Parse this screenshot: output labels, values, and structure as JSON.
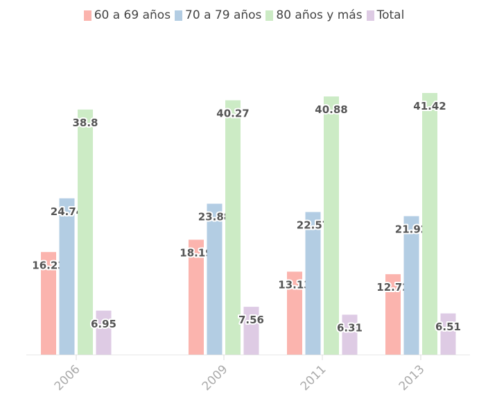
{
  "chart_data": {
    "type": "bar",
    "x_axis_type": "time",
    "categories": [
      "2006",
      "2009",
      "2011",
      "2013"
    ],
    "series": [
      {
        "name": "60 a 69 años",
        "color": "#fbb4ae",
        "values": [
          16.23,
          18.19,
          13.13,
          12.72
        ]
      },
      {
        "name": "70 a 79 años",
        "color": "#b3cde3",
        "values": [
          24.74,
          23.88,
          22.57,
          21.92
        ]
      },
      {
        "name": "80 años y más",
        "color": "#ccebc5",
        "values": [
          38.8,
          40.27,
          40.88,
          41.42
        ]
      },
      {
        "name": "Total",
        "color": "#decbe4",
        "values": [
          6.95,
          7.56,
          6.31,
          6.51
        ]
      }
    ],
    "ylim": [
      0,
      42
    ],
    "legend_position": "top",
    "grid": false,
    "data_labels": true
  }
}
